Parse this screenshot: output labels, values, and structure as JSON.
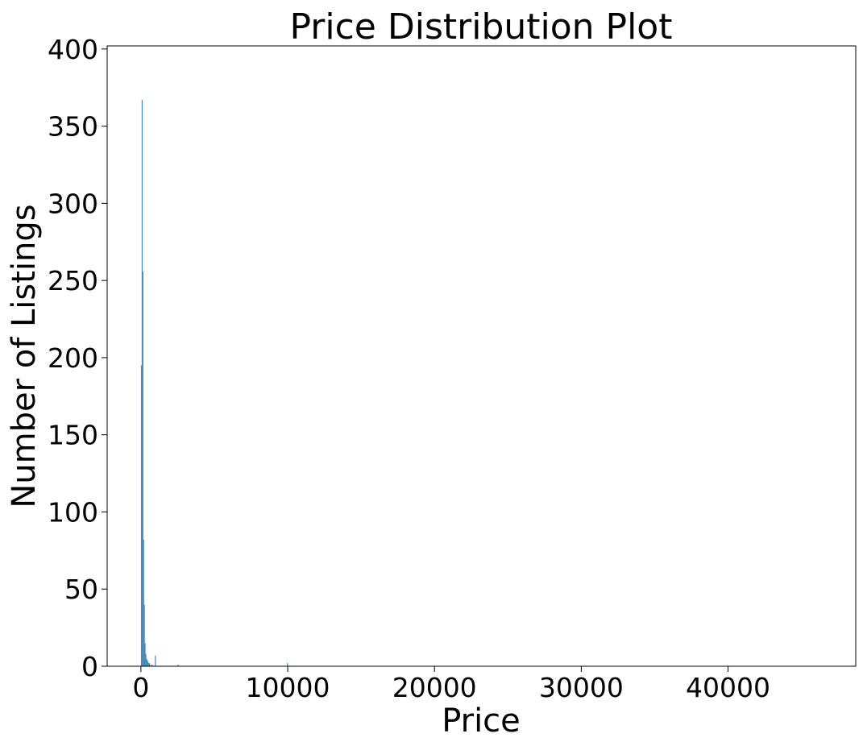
{
  "chart_data": {
    "type": "bar",
    "title": "Price Distribution Plot",
    "xlabel": "Price",
    "ylabel": "Number of Listings",
    "xlim": [
      -2300,
      48700
    ],
    "ylim": [
      0,
      402
    ],
    "xticks": [
      0,
      10000,
      20000,
      30000,
      40000
    ],
    "xtick_labels": [
      "0",
      "10000",
      "20000",
      "30000",
      "40000"
    ],
    "yticks": [
      0,
      50,
      100,
      150,
      200,
      250,
      300,
      350,
      400
    ],
    "ytick_labels": [
      "0",
      "50",
      "100",
      "150",
      "200",
      "250",
      "300",
      "350",
      "400"
    ],
    "grid": false,
    "bar_color": "#4c8bb5",
    "bins": [
      {
        "x0": 0,
        "x1": 50,
        "value": 195
      },
      {
        "x0": 50,
        "x1": 100,
        "value": 367
      },
      {
        "x0": 100,
        "x1": 150,
        "value": 256
      },
      {
        "x0": 150,
        "x1": 200,
        "value": 82
      },
      {
        "x0": 200,
        "x1": 250,
        "value": 40
      },
      {
        "x0": 250,
        "x1": 300,
        "value": 15
      },
      {
        "x0": 300,
        "x1": 350,
        "value": 8
      },
      {
        "x0": 350,
        "x1": 400,
        "value": 5
      },
      {
        "x0": 400,
        "x1": 450,
        "value": 4
      },
      {
        "x0": 450,
        "x1": 500,
        "value": 3
      },
      {
        "x0": 500,
        "x1": 550,
        "value": 2
      },
      {
        "x0": 550,
        "x1": 600,
        "value": 2
      },
      {
        "x0": 650,
        "x1": 700,
        "value": 1
      },
      {
        "x0": 750,
        "x1": 800,
        "value": 1
      },
      {
        "x0": 950,
        "x1": 1000,
        "value": 7
      },
      {
        "x0": 2500,
        "x1": 2550,
        "value": 1
      },
      {
        "x0": 9950,
        "x1": 10000,
        "value": 2
      }
    ]
  }
}
